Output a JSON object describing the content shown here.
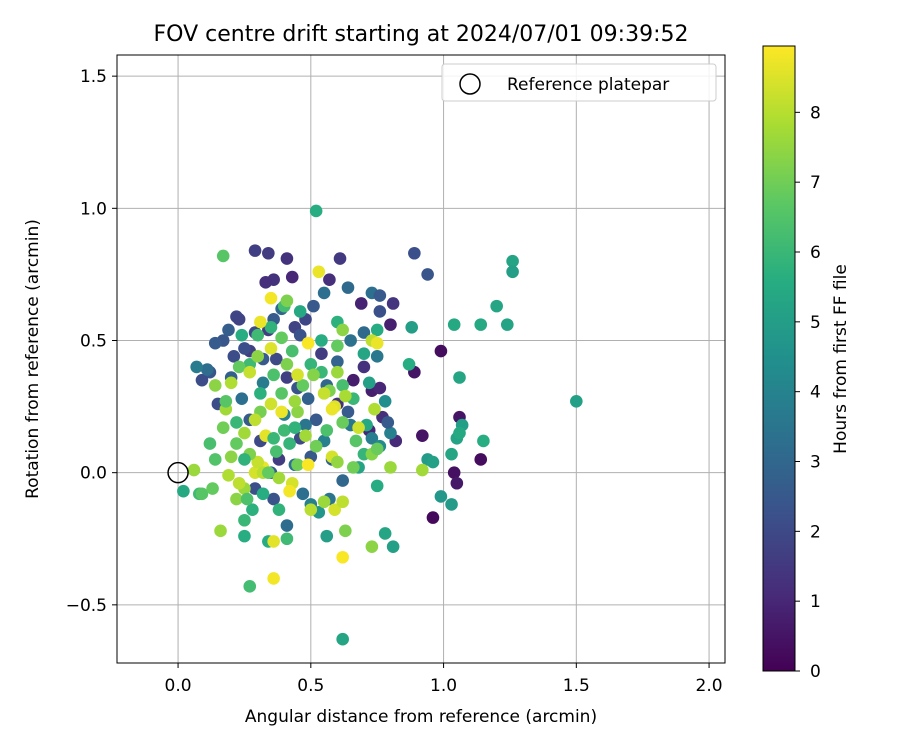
{
  "chart_data": {
    "type": "scatter",
    "title": "FOV centre drift starting at 2024/07/01 09:39:52",
    "xlabel": "Angular distance from reference (arcmin)",
    "ylabel": "Rotation from reference (arcmin)",
    "xlim": [
      -0.23,
      2.06
    ],
    "ylim": [
      -0.72,
      1.58
    ],
    "xticks": [
      0.0,
      0.5,
      1.0,
      1.5,
      2.0
    ],
    "xtick_labels": [
      "0.0",
      "0.5",
      "1.0",
      "1.5",
      "2.0"
    ],
    "yticks": [
      -0.5,
      0.0,
      0.5,
      1.0,
      1.5
    ],
    "ytick_labels": [
      "−0.5",
      "0.0",
      "0.5",
      "1.0",
      "1.5"
    ],
    "grid": true,
    "legend": {
      "placement": "top-right",
      "entries": [
        "Reference platepar"
      ]
    },
    "reference_point": {
      "x": 0.0,
      "y": 0.0,
      "label": "Reference platepar"
    },
    "colorbar": {
      "label": "Hours from first FF file",
      "colormap": "viridis",
      "range": [
        0,
        8.95
      ],
      "ticks": [
        0,
        1,
        2,
        3,
        4,
        5,
        6,
        7,
        8
      ],
      "tick_labels": [
        "0",
        "1",
        "2",
        "3",
        "4",
        "5",
        "6",
        "7",
        "8"
      ]
    },
    "points": [
      [
        0.99,
        0.46,
        0.3
      ],
      [
        1.04,
        0.0,
        0.4
      ],
      [
        0.96,
        -0.17,
        0.2
      ],
      [
        1.05,
        -0.04,
        0.6
      ],
      [
        1.06,
        0.21,
        0.5
      ],
      [
        1.14,
        0.05,
        0.3
      ],
      [
        0.89,
        0.38,
        0.5
      ],
      [
        0.92,
        0.14,
        0.5
      ],
      [
        0.8,
        0.56,
        0.8
      ],
      [
        0.73,
        0.31,
        0.8
      ],
      [
        0.66,
        0.35,
        0.7
      ],
      [
        0.69,
        0.64,
        0.9
      ],
      [
        0.76,
        0.32,
        1.0
      ],
      [
        0.72,
        0.16,
        1.0
      ],
      [
        0.77,
        0.21,
        1.2
      ],
      [
        0.82,
        0.12,
        1.1
      ],
      [
        0.81,
        0.64,
        1.4
      ],
      [
        0.7,
        0.4,
        1.3
      ],
      [
        0.6,
        0.26,
        1.3
      ],
      [
        0.57,
        0.73,
        1.2
      ],
      [
        0.36,
        0.73,
        1.3
      ],
      [
        0.34,
        0.83,
        1.6
      ],
      [
        0.29,
        0.84,
        1.7
      ],
      [
        0.41,
        0.81,
        1.3
      ],
      [
        0.43,
        0.74,
        1.0
      ],
      [
        0.33,
        0.72,
        1.2
      ],
      [
        0.61,
        0.81,
        1.5
      ],
      [
        0.89,
        0.83,
        2.2
      ],
      [
        0.94,
        0.75,
        2.4
      ],
      [
        0.76,
        0.61,
        2.2
      ],
      [
        0.44,
        0.55,
        1.8
      ],
      [
        0.34,
        0.54,
        1.6
      ],
      [
        0.48,
        0.58,
        1.9
      ],
      [
        0.54,
        0.45,
        1.6
      ],
      [
        0.27,
        0.46,
        1.7
      ],
      [
        0.21,
        0.44,
        2.1
      ],
      [
        0.17,
        0.5,
        2.4
      ],
      [
        0.19,
        0.54,
        2.7
      ],
      [
        0.22,
        0.59,
        1.9
      ],
      [
        0.29,
        0.53,
        2.0
      ],
      [
        0.36,
        0.58,
        2.6
      ],
      [
        0.39,
        0.62,
        3.0
      ],
      [
        0.46,
        0.52,
        2.3
      ],
      [
        0.51,
        0.63,
        2.5
      ],
      [
        0.55,
        0.68,
        3.3
      ],
      [
        0.64,
        0.7,
        3.1
      ],
      [
        0.73,
        0.68,
        3.3
      ],
      [
        0.76,
        0.67,
        2.5
      ],
      [
        0.7,
        0.53,
        3.1
      ],
      [
        0.75,
        0.44,
        3.6
      ],
      [
        0.65,
        0.5,
        3.4
      ],
      [
        0.6,
        0.42,
        2.9
      ],
      [
        0.56,
        0.33,
        3.0
      ],
      [
        0.64,
        0.23,
        2.6
      ],
      [
        0.65,
        0.18,
        3.6
      ],
      [
        0.73,
        0.13,
        3.8
      ],
      [
        0.76,
        0.1,
        4.3
      ],
      [
        0.8,
        0.15,
        3.9
      ],
      [
        0.78,
        0.27,
        4.4
      ],
      [
        0.79,
        0.19,
        2.6
      ],
      [
        0.12,
        0.38,
        2.4
      ],
      [
        0.09,
        0.35,
        2.1
      ],
      [
        0.11,
        0.39,
        3.2
      ],
      [
        0.07,
        0.4,
        3.7
      ],
      [
        0.15,
        0.26,
        2.1
      ],
      [
        0.14,
        0.49,
        2.6
      ],
      [
        0.2,
        0.36,
        2.8
      ],
      [
        0.23,
        0.58,
        1.8
      ],
      [
        0.25,
        0.47,
        2.2
      ],
      [
        0.32,
        0.43,
        2.6
      ],
      [
        0.37,
        0.43,
        2.0
      ],
      [
        0.41,
        0.36,
        1.7
      ],
      [
        0.45,
        0.32,
        2.3
      ],
      [
        0.49,
        0.28,
        2.8
      ],
      [
        0.52,
        0.2,
        2.5
      ],
      [
        0.46,
        0.13,
        2.0
      ],
      [
        0.38,
        0.05,
        1.6
      ],
      [
        0.31,
        0.12,
        2.0
      ],
      [
        0.27,
        0.2,
        2.6
      ],
      [
        0.24,
        0.28,
        3.3
      ],
      [
        0.32,
        0.34,
        3.7
      ],
      [
        0.4,
        0.22,
        3.9
      ],
      [
        0.48,
        0.18,
        3.5
      ],
      [
        0.55,
        0.12,
        3.9
      ],
      [
        0.58,
        0.05,
        2.8
      ],
      [
        0.62,
        -0.03,
        3.0
      ],
      [
        0.57,
        -0.1,
        3.5
      ],
      [
        0.5,
        -0.12,
        3.9
      ],
      [
        0.41,
        -0.2,
        3.2
      ],
      [
        0.36,
        -0.1,
        2.3
      ],
      [
        0.29,
        -0.06,
        2.2
      ],
      [
        0.35,
        0.0,
        2.7
      ],
      [
        0.44,
        0.03,
        3.4
      ],
      [
        0.5,
        0.06,
        2.5
      ],
      [
        0.47,
        -0.08,
        3.3
      ],
      [
        0.53,
        -0.15,
        4.7
      ],
      [
        0.56,
        -0.24,
        5.0
      ],
      [
        0.52,
        0.99,
        5.6
      ],
      [
        1.26,
        0.8,
        5.2
      ],
      [
        1.26,
        0.76,
        5.0
      ],
      [
        1.2,
        0.63,
        5.3
      ],
      [
        1.14,
        0.56,
        5.4
      ],
      [
        1.24,
        0.56,
        5.2
      ],
      [
        1.04,
        0.56,
        5.4
      ],
      [
        1.06,
        0.36,
        5.3
      ],
      [
        1.07,
        0.18,
        5.0
      ],
      [
        1.05,
        0.13,
        5.2
      ],
      [
        1.06,
        0.15,
        5.4
      ],
      [
        1.15,
        0.12,
        5.6
      ],
      [
        1.03,
        0.07,
        5.3
      ],
      [
        0.94,
        0.05,
        4.9
      ],
      [
        0.96,
        0.04,
        5.1
      ],
      [
        0.99,
        -0.09,
        4.8
      ],
      [
        1.03,
        -0.12,
        4.9
      ],
      [
        1.5,
        0.27,
        5.1
      ],
      [
        0.87,
        0.41,
        5.6
      ],
      [
        0.88,
        0.55,
        5.0
      ],
      [
        0.75,
        0.54,
        5.5
      ],
      [
        0.7,
        0.45,
        5.3
      ],
      [
        0.72,
        0.34,
        5.1
      ],
      [
        0.6,
        0.57,
        5.7
      ],
      [
        0.54,
        0.5,
        5.6
      ],
      [
        0.46,
        0.61,
        5.4
      ],
      [
        0.4,
        0.63,
        6.2
      ],
      [
        0.35,
        0.55,
        5.8
      ],
      [
        0.3,
        0.52,
        6.1
      ],
      [
        0.24,
        0.52,
        5.6
      ],
      [
        0.27,
        0.41,
        6.1
      ],
      [
        0.31,
        0.3,
        5.7
      ],
      [
        0.36,
        0.37,
        6.4
      ],
      [
        0.43,
        0.46,
        6.3
      ],
      [
        0.5,
        0.41,
        5.9
      ],
      [
        0.54,
        0.38,
        6.0
      ],
      [
        0.62,
        0.33,
        6.3
      ],
      [
        0.66,
        0.28,
        6.0
      ],
      [
        0.71,
        0.18,
        5.4
      ],
      [
        0.7,
        0.07,
        5.9
      ],
      [
        0.68,
        0.02,
        5.2
      ],
      [
        0.75,
        -0.05,
        5.5
      ],
      [
        0.81,
        -0.28,
        5.1
      ],
      [
        0.78,
        -0.23,
        5.3
      ],
      [
        0.62,
        -0.63,
        5.3
      ],
      [
        0.27,
        -0.43,
        6.2
      ],
      [
        0.34,
        -0.26,
        5.5
      ],
      [
        0.25,
        -0.24,
        5.6
      ],
      [
        0.25,
        -0.18,
        6.0
      ],
      [
        0.28,
        -0.14,
        5.7
      ],
      [
        0.32,
        -0.08,
        5.6
      ],
      [
        0.38,
        -0.14,
        5.8
      ],
      [
        0.41,
        -0.25,
        6.1
      ],
      [
        0.02,
        -0.07,
        5.4
      ],
      [
        0.08,
        -0.08,
        6.1
      ],
      [
        0.09,
        -0.08,
        6.6
      ],
      [
        0.13,
        -0.06,
        6.8
      ],
      [
        0.06,
        0.01,
        7.6
      ],
      [
        0.16,
        -0.22,
        7.6
      ],
      [
        0.36,
        -0.26,
        8.6
      ],
      [
        0.36,
        -0.4,
        8.8
      ],
      [
        0.62,
        -0.32,
        8.9
      ],
      [
        0.73,
        -0.28,
        7.4
      ],
      [
        0.63,
        -0.22,
        7.2
      ],
      [
        0.59,
        -0.14,
        8.4
      ],
      [
        0.62,
        -0.11,
        8.1
      ],
      [
        0.55,
        -0.11,
        7.6
      ],
      [
        0.5,
        -0.14,
        8.0
      ],
      [
        0.25,
        -0.06,
        7.6
      ],
      [
        0.22,
        -0.1,
        7.4
      ],
      [
        0.26,
        -0.1,
        6.4
      ],
      [
        0.23,
        -0.04,
        8.1
      ],
      [
        0.19,
        -0.01,
        7.9
      ],
      [
        0.29,
        0.0,
        8.4
      ],
      [
        0.32,
        0.02,
        8.7
      ],
      [
        0.3,
        0.04,
        8.2
      ],
      [
        0.38,
        -0.02,
        7.7
      ],
      [
        0.43,
        -0.04,
        8.4
      ],
      [
        0.42,
        -0.07,
        8.8
      ],
      [
        0.45,
        0.03,
        7.0
      ],
      [
        0.49,
        0.03,
        8.9
      ],
      [
        0.58,
        0.06,
        8.4
      ],
      [
        0.6,
        0.04,
        7.5
      ],
      [
        0.66,
        0.02,
        7.0
      ],
      [
        0.73,
        0.07,
        7.3
      ],
      [
        0.8,
        0.02,
        7.6
      ],
      [
        0.92,
        0.01,
        7.7
      ],
      [
        0.75,
        0.09,
        6.9
      ],
      [
        0.68,
        0.17,
        8.3
      ],
      [
        0.74,
        0.24,
        7.9
      ],
      [
        0.59,
        0.25,
        8.5
      ],
      [
        0.63,
        0.29,
        7.8
      ],
      [
        0.57,
        0.31,
        7.2
      ],
      [
        0.6,
        0.38,
        7.6
      ],
      [
        0.51,
        0.37,
        7.3
      ],
      [
        0.47,
        0.33,
        6.8
      ],
      [
        0.45,
        0.23,
        7.4
      ],
      [
        0.39,
        0.23,
        8.7
      ],
      [
        0.35,
        0.26,
        8.3
      ],
      [
        0.31,
        0.23,
        7.1
      ],
      [
        0.29,
        0.2,
        8.1
      ],
      [
        0.25,
        0.15,
        7.7
      ],
      [
        0.22,
        0.11,
        6.8
      ],
      [
        0.2,
        0.06,
        7.4
      ],
      [
        0.14,
        0.05,
        6.5
      ],
      [
        0.12,
        0.11,
        6.3
      ],
      [
        0.17,
        0.17,
        7.0
      ],
      [
        0.18,
        0.24,
        7.7
      ],
      [
        0.14,
        0.33,
        7.4
      ],
      [
        0.2,
        0.34,
        7.9
      ],
      [
        0.23,
        0.4,
        6.8
      ],
      [
        0.27,
        0.38,
        8.2
      ],
      [
        0.3,
        0.44,
        7.4
      ],
      [
        0.35,
        0.47,
        8.5
      ],
      [
        0.39,
        0.51,
        6.8
      ],
      [
        0.41,
        0.41,
        7.2
      ],
      [
        0.45,
        0.37,
        8.4
      ],
      [
        0.44,
        0.27,
        7.6
      ],
      [
        0.48,
        0.14,
        7.7
      ],
      [
        0.52,
        0.1,
        7.0
      ],
      [
        0.56,
        0.16,
        6.4
      ],
      [
        0.62,
        0.19,
        6.9
      ],
      [
        0.67,
        0.12,
        6.6
      ],
      [
        0.53,
        0.76,
        8.7
      ],
      [
        0.49,
        0.49,
        8.9
      ],
      [
        0.35,
        0.66,
        8.8
      ],
      [
        0.41,
        0.65,
        7.2
      ],
      [
        0.73,
        0.5,
        8.1
      ],
      [
        0.75,
        0.49,
        8.7
      ],
      [
        0.62,
        0.54,
        7.4
      ],
      [
        0.6,
        0.48,
        6.8
      ],
      [
        0.55,
        0.3,
        8.2
      ],
      [
        0.58,
        0.24,
        8.7
      ],
      [
        0.31,
        0.57,
        8.7
      ],
      [
        0.18,
        0.27,
        6.6
      ],
      [
        0.22,
        0.19,
        6.0
      ],
      [
        0.27,
        0.07,
        7.2
      ],
      [
        0.33,
        0.14,
        8.6
      ],
      [
        0.36,
        0.13,
        6.0
      ],
      [
        0.37,
        0.08,
        6.3
      ],
      [
        0.42,
        0.11,
        5.9
      ],
      [
        0.4,
        0.16,
        6.1
      ],
      [
        0.44,
        0.17,
        5.8
      ],
      [
        0.17,
        0.82,
        6.6
      ],
      [
        0.32,
        0.0,
        8.0
      ],
      [
        0.34,
        0.0,
        6.8
      ],
      [
        0.39,
        0.3,
        6.6
      ],
      [
        0.25,
        0.05,
        5.8
      ]
    ]
  }
}
